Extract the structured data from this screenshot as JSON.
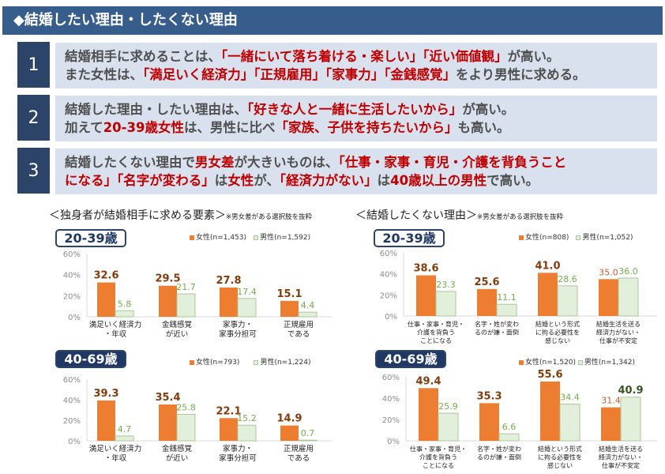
{
  "header": {
    "title": "◆結婚したい理由・したくない理由"
  },
  "findings": [
    {
      "num": "1",
      "lines": [
        [
          {
            "t": "結婚相手に求めることは、"
          },
          {
            "t": "「一緒にいて落ち着ける・楽しい」「近い価値観」",
            "red": true
          },
          {
            "t": "が高い。"
          }
        ],
        [
          {
            "t": "また女性は、"
          },
          {
            "t": "「満足いく経済力」「正規雇用」「家事力」「金銭感覚」",
            "red": true
          },
          {
            "t": "をより男性に求める。"
          }
        ]
      ]
    },
    {
      "num": "2",
      "lines": [
        [
          {
            "t": "結婚した理由・したい理由は、"
          },
          {
            "t": "「好きな人と一緒に生活したいから」",
            "red": true
          },
          {
            "t": "が高い。"
          }
        ],
        [
          {
            "t": "加えて"
          },
          {
            "t": "20-39歳女性",
            "red": true
          },
          {
            "t": "は、男性に比べ"
          },
          {
            "t": "「家族、子供を持ちたいから」",
            "red": true
          },
          {
            "t": "も高い。"
          }
        ]
      ]
    },
    {
      "num": "3",
      "lines": [
        [
          {
            "t": "結婚したくない理由で"
          },
          {
            "t": "男女差",
            "red": true
          },
          {
            "t": "が大きいものは、"
          },
          {
            "t": "「仕事・家事・育児・介護を背負うこと",
            "red": true
          }
        ],
        [
          {
            "t": "になる」「名字が変わる」",
            "red": true
          },
          {
            "t": "は"
          },
          {
            "t": "女性",
            "red": true
          },
          {
            "t": "が、"
          },
          {
            "t": "「経済力がない」",
            "red": true
          },
          {
            "t": "は"
          },
          {
            "t": "40歳以上の男性",
            "red": true
          },
          {
            "t": "で高い。"
          }
        ]
      ]
    }
  ],
  "sections": {
    "left": {
      "title": "＜独身者が結婚相手に求める要素＞",
      "note": "※男女差がある選択肢を抜粋"
    },
    "right": {
      "title": "＜結婚したくない理由＞",
      "note": "※男女差がある選択肢を抜粋"
    }
  },
  "colors": {
    "female": "#ed7d31",
    "male": "#e2efda",
    "male_border": "#a9c79a",
    "female_label": "#843c0c",
    "female_label_light": "#c55a3a",
    "male_label": "#70ad47",
    "male_label_bold": "#375623"
  },
  "chart_data": [
    {
      "type": "bar",
      "title": "20-39歳",
      "ylim": [
        0,
        60
      ],
      "yticks": [
        "0%",
        "20%",
        "40%",
        "60%"
      ],
      "categories": [
        [
          "満足いく経済力",
          "・年収"
        ],
        [
          "金銭感覚",
          "が近い"
        ],
        [
          "家事力・",
          "家事分担可"
        ],
        [
          "正規雇用",
          "である"
        ]
      ],
      "series": [
        {
          "name": "女性(n=1,453)",
          "values": [
            32.6,
            29.5,
            27.8,
            15.1
          ],
          "bold": [
            true,
            true,
            true,
            true
          ]
        },
        {
          "name": "男性(n=1,592)",
          "values": [
            5.8,
            21.7,
            17.4,
            4.4
          ],
          "bold": [
            false,
            false,
            false,
            false
          ]
        }
      ]
    },
    {
      "type": "bar",
      "title": "40-69歳",
      "ylim": [
        0,
        60
      ],
      "yticks": [
        "0%",
        "20%",
        "40%",
        "60%"
      ],
      "categories": [
        [
          "満足いく経済力",
          "・年収"
        ],
        [
          "金銭感覚",
          "が近い"
        ],
        [
          "家事力・",
          "家事分担可"
        ],
        [
          "正規雇用",
          "である"
        ]
      ],
      "series": [
        {
          "name": "女性(n=793)",
          "values": [
            39.3,
            35.4,
            22.1,
            14.9
          ],
          "bold": [
            true,
            true,
            true,
            true
          ]
        },
        {
          "name": "男性(n=1,224)",
          "values": [
            4.7,
            25.8,
            15.2,
            0.7
          ],
          "bold": [
            false,
            false,
            false,
            false
          ]
        }
      ]
    },
    {
      "type": "bar",
      "title": "20-39歳",
      "ylim": [
        0,
        60
      ],
      "yticks": [
        "0%",
        "20%",
        "40%",
        "60%"
      ],
      "categories": [
        [
          "仕事・家事・育児・",
          "介護を背負う",
          "ことになる"
        ],
        [
          "名字・姓が変わ",
          "るのが嫌・面倒"
        ],
        [
          "結婚という形式",
          "に拘る必要性を",
          "感じない"
        ],
        [
          "結婚生活を送る",
          "経済力がない・",
          "仕事が不安定"
        ]
      ],
      "series": [
        {
          "name": "女性(n=808)",
          "values": [
            38.6,
            25.6,
            41.0,
            35.0
          ],
          "bold": [
            true,
            true,
            true,
            false
          ]
        },
        {
          "name": "男性(n=1,052)",
          "values": [
            23.3,
            11.1,
            28.6,
            36.0
          ],
          "bold": [
            false,
            false,
            false,
            false
          ]
        }
      ]
    },
    {
      "type": "bar",
      "title": "40-69歳",
      "ylim": [
        0,
        60
      ],
      "yticks": [
        "0%",
        "20%",
        "40%",
        "60%"
      ],
      "categories": [
        [
          "仕事・家事・育児・",
          "介護を背負う",
          "ことになる"
        ],
        [
          "名字・姓が変わ",
          "るのが嫌・面倒"
        ],
        [
          "結婚という形式",
          "に拘る必要性を",
          "感じない"
        ],
        [
          "結婚生活を送る",
          "経済力がない・",
          "仕事が不安定"
        ]
      ],
      "series": [
        {
          "name": "女性(n=1,520)",
          "values": [
            49.4,
            35.3,
            55.6,
            31.4
          ],
          "bold": [
            true,
            true,
            true,
            false
          ]
        },
        {
          "name": "男性(n=1,342)",
          "values": [
            25.9,
            6.6,
            34.4,
            40.9
          ],
          "bold": [
            false,
            false,
            false,
            true
          ]
        }
      ]
    }
  ]
}
